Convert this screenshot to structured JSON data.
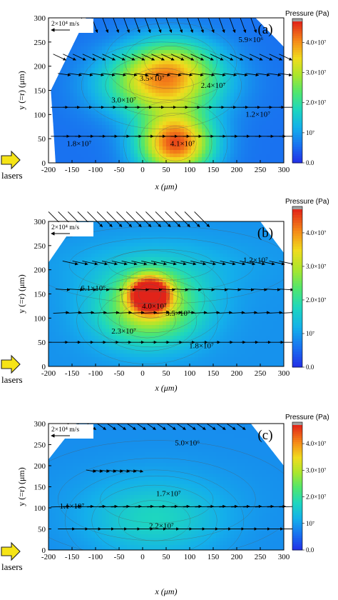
{
  "figure": {
    "colorbar_title": "Pressure (Pa)",
    "colorbar_ticks": [
      "0.0",
      "10⁷",
      "2.0×10⁷",
      "3.0×10⁷",
      "4.0×10⁷"
    ],
    "colorbar_tick_values": [
      0,
      10000000,
      20000000,
      30000000,
      40000000
    ],
    "colorbar_max": 47000000,
    "xlabel": "x (μm)",
    "ylabel": "y (=r) (μm)",
    "x_ticks": [
      "-200",
      "-150",
      "-100",
      "-50",
      "0",
      "50",
      "100",
      "150",
      "200",
      "250",
      "300"
    ],
    "y_ticks": [
      "0",
      "50",
      "100",
      "150",
      "200",
      "250",
      "300"
    ],
    "reference_vector": "2×10⁴ m/s",
    "lasers_label": "lasers",
    "colors": {
      "low": "#1e32e6",
      "mid": "#22dcb4",
      "high": "#e6281e",
      "arrow": "#000000"
    }
  },
  "chart_data": [
    {
      "type": "heatmap",
      "panel": "(a)",
      "xlabel": "x (μm)",
      "ylabel": "y (=r) (μm)",
      "xlim": [
        -200,
        300
      ],
      "ylim": [
        0,
        300
      ],
      "colorbar_range_pa": [
        0,
        47000000
      ],
      "domain_polygon": [
        [
          -200,
          0
        ],
        [
          -185,
          0
        ],
        [
          -190,
          80
        ],
        [
          -195,
          150
        ],
        [
          -120,
          300
        ],
        [
          240,
          300
        ],
        [
          300,
          240
        ],
        [
          300,
          0
        ]
      ],
      "contour_labels": [
        {
          "text": "5.9×10⁶",
          "x": 230,
          "y": 250
        },
        {
          "text": "3.5×10⁷",
          "x": 20,
          "y": 170
        },
        {
          "text": "2.4×10⁷",
          "x": 150,
          "y": 155
        },
        {
          "text": "3.0×10⁷",
          "x": -40,
          "y": 125
        },
        {
          "text": "1.2×10⁷",
          "x": 245,
          "y": 95
        },
        {
          "text": "1.8×10⁷",
          "x": -135,
          "y": 35
        },
        {
          "text": "4.1×10⁷",
          "x": 85,
          "y": 35
        }
      ],
      "peaks_pa": [
        {
          "x": 70,
          "y": 40,
          "value": 41000000,
          "sx": 55,
          "sy": 45
        },
        {
          "x": 40,
          "y": 160,
          "value": 30000000,
          "sx": 85,
          "sy": 45
        },
        {
          "x": 60,
          "y": 210,
          "value": 18000000,
          "sx": 70,
          "sy": 40
        }
      ],
      "background_pa": 6000000,
      "vector_rows": [
        {
          "y": 300,
          "x_start": -130,
          "x_end": 230,
          "count": 17,
          "angle_deg": -70,
          "length": 22
        },
        {
          "y": 225,
          "x_start": -190,
          "x_end": 290,
          "count": 24,
          "angle_deg": -25,
          "length": 20
        },
        {
          "y": 185,
          "x_start": -180,
          "x_end": 290,
          "count": 21,
          "angle_deg": -8,
          "length": 18
        },
        {
          "y": 115,
          "x_start": -195,
          "x_end": 290,
          "count": 20,
          "angle_deg": 0,
          "length": 24
        },
        {
          "y": 55,
          "x_start": -195,
          "x_end": 290,
          "count": 20,
          "angle_deg": 0,
          "length": 26
        }
      ]
    },
    {
      "type": "heatmap",
      "panel": "(b)",
      "xlabel": "x (μm)",
      "ylabel": "y (=r) (μm)",
      "xlim": [
        -200,
        300
      ],
      "ylim": [
        0,
        300
      ],
      "colorbar_range_pa": [
        0,
        47000000
      ],
      "domain_polygon": [
        [
          -200,
          0
        ],
        [
          300,
          0
        ],
        [
          300,
          235
        ],
        [
          250,
          300
        ],
        [
          -140,
          300
        ],
        [
          -200,
          215
        ]
      ],
      "contour_labels": [
        {
          "text": "1.2×10⁷",
          "x": 240,
          "y": 215
        },
        {
          "text": "6.1×10⁶",
          "x": -105,
          "y": 157
        },
        {
          "text": "4.0×10⁷",
          "x": 25,
          "y": 120
        },
        {
          "text": "3.5×10⁷",
          "x": 75,
          "y": 105
        },
        {
          "text": "2.3×10⁷",
          "x": -40,
          "y": 68
        },
        {
          "text": "1.8×10⁷",
          "x": 125,
          "y": 38
        }
      ],
      "peaks_pa": [
        {
          "x": 15,
          "y": 150,
          "value": 45000000,
          "sx": 30,
          "sy": 25
        },
        {
          "x": 20,
          "y": 140,
          "value": 18000000,
          "sx": 80,
          "sy": 50
        },
        {
          "x": 10,
          "y": 95,
          "value": 16000000,
          "sx": 75,
          "sy": 45
        },
        {
          "x": 40,
          "y": 210,
          "value": 8000000,
          "sx": 140,
          "sy": 40
        }
      ],
      "background_pa": 9000000,
      "vector_rows": [
        {
          "y": 320,
          "x_start": -200,
          "x_end": 110,
          "count": 16,
          "angle_deg": -45,
          "length": 30
        },
        {
          "y": 218,
          "x_start": -170,
          "x_end": 290,
          "count": 23,
          "angle_deg": -12,
          "length": 22
        },
        {
          "y": 160,
          "x_start": -185,
          "x_end": 290,
          "count": 18,
          "angle_deg": -3,
          "length": 20
        },
        {
          "y": 110,
          "x_start": -190,
          "x_end": 290,
          "count": 19,
          "angle_deg": 3,
          "length": 22
        },
        {
          "y": 50,
          "x_start": -195,
          "x_end": 290,
          "count": 19,
          "angle_deg": 0,
          "length": 24
        }
      ]
    },
    {
      "type": "heatmap",
      "panel": "(c)",
      "xlabel": "x (μm)",
      "ylabel": "y (=r) (μm)",
      "xlim": [
        -200,
        300
      ],
      "ylim": [
        0,
        300
      ],
      "colorbar_range_pa": [
        0,
        47000000
      ],
      "domain_polygon": [
        [
          -200,
          0
        ],
        [
          300,
          0
        ],
        [
          300,
          200
        ],
        [
          230,
          300
        ],
        [
          -140,
          300
        ],
        [
          -200,
          215
        ]
      ],
      "contour_labels": [
        {
          "text": "5.0×10⁶",
          "x": 95,
          "y": 248
        },
        {
          "text": "1.7×10⁷",
          "x": 55,
          "y": 128
        },
        {
          "text": "1.1×10⁷",
          "x": -150,
          "y": 98
        },
        {
          "text": "2.2×10⁷",
          "x": 40,
          "y": 52
        }
      ],
      "peaks_pa": [
        {
          "x": 25,
          "y": 70,
          "value": 12000000,
          "sx": 95,
          "sy": 60
        },
        {
          "x": 30,
          "y": 120,
          "value": 6000000,
          "sx": 150,
          "sy": 70
        }
      ],
      "background_pa": 8500000,
      "vector_rows": [
        {
          "y": 300,
          "x_start": -160,
          "x_end": 200,
          "count": 18,
          "angle_deg": -35,
          "length": 15
        },
        {
          "y": 190,
          "x_start": -120,
          "x_end": -20,
          "count": 8,
          "angle_deg": -10,
          "length": 14
        },
        {
          "y": 102,
          "x_start": -195,
          "x_end": 290,
          "count": 20,
          "angle_deg": 2,
          "length": 26
        },
        {
          "y": 50,
          "x_start": -180,
          "x_end": 290,
          "count": 18,
          "angle_deg": 0,
          "length": 24
        }
      ]
    }
  ]
}
